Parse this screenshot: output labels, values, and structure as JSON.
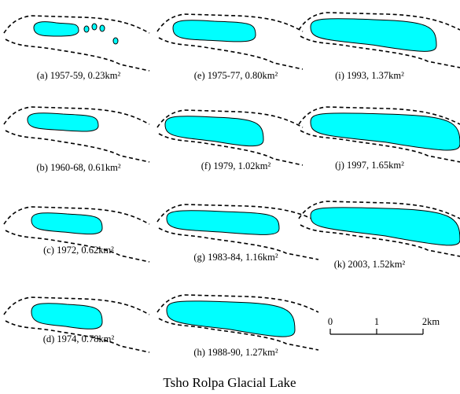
{
  "panels": [
    {
      "caption": "(a) 1957-59, 0.23km²"
    },
    {
      "caption": "(b) 1960-68, 0.61km²"
    },
    {
      "caption": "(c) 1972, 0.62km²"
    },
    {
      "caption": "(d) 1974, 0.78km²"
    },
    {
      "caption": "(e) 1975-77, 0.80km²"
    },
    {
      "caption": "(f) 1979, 1.02km²"
    },
    {
      "caption": "(g) 1983-84, 1.16km²"
    },
    {
      "caption": "(h) 1988-90, 1.27km²"
    },
    {
      "caption": "(i) 1993, 1.37km²"
    },
    {
      "caption": "(j) 1997, 1.65km²"
    },
    {
      "caption": "(k) 2003, 1.52km²"
    }
  ],
  "scale_bar": {
    "labels": [
      "0",
      "1",
      "2km"
    ]
  },
  "title": "Tsho Rolpa Glacial Lake"
}
